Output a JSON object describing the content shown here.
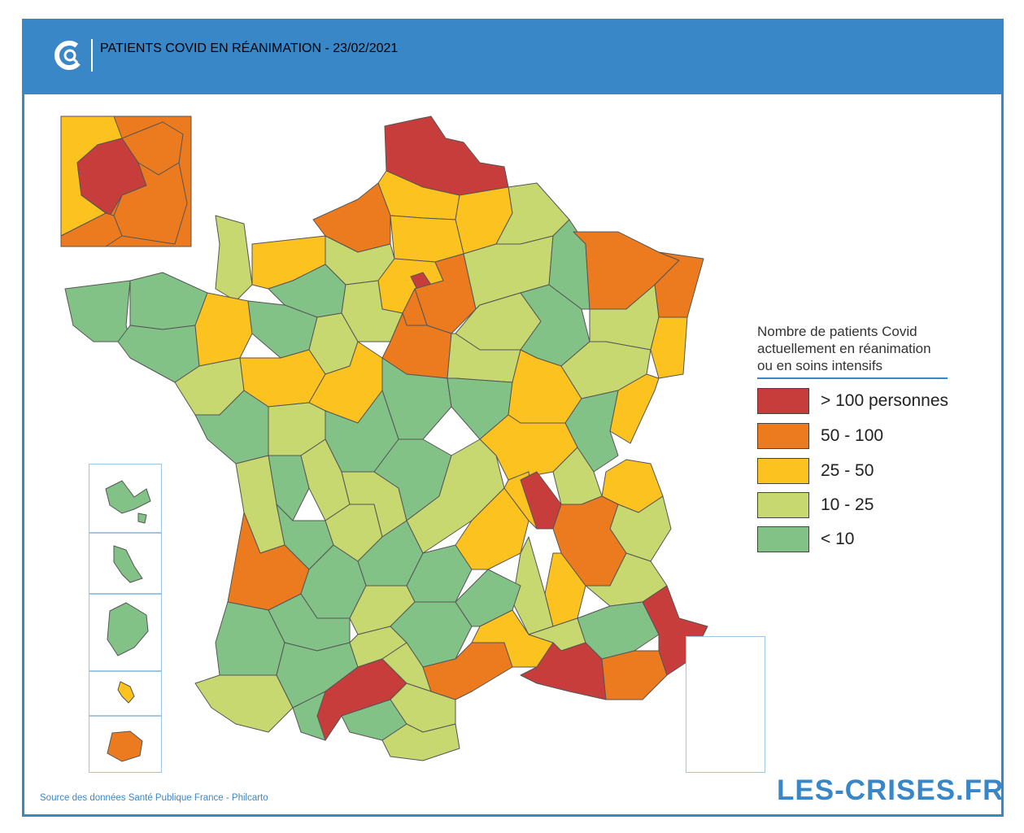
{
  "header": {
    "title": "PATIENTS COVID EN RÉANIMATION - 23/02/2021",
    "logo_icon": "les-crises-c-logo-icon"
  },
  "legend": {
    "title": "Nombre de patients Covid\nactuellement en réanimation\nou en soins intensifs",
    "items": [
      {
        "label": "> 100 personnes",
        "color": "#c63d3c"
      },
      {
        "label": "50 - 100",
        "color": "#ec7b20"
      },
      {
        "label": "25 - 50",
        "color": "#fcc21f"
      },
      {
        "label": "10 - 25",
        "color": "#c6d86f"
      },
      {
        "label": "< 10",
        "color": "#83c287"
      }
    ]
  },
  "colors": {
    "accent": "#3a87c8",
    "border": "#555555"
  },
  "source": "Source des données Santé Publique France - Philcarto",
  "brand": "LES-CRISES.FR"
}
